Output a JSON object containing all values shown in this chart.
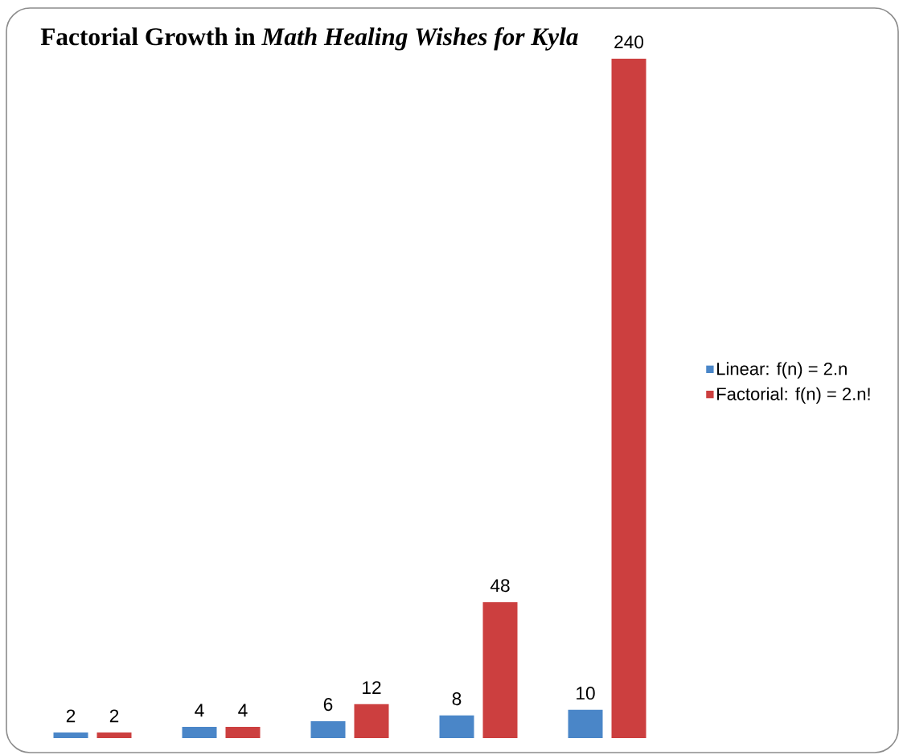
{
  "chart_data": {
    "type": "bar",
    "title": "Factorial Growth in *Math Healing Wishes for Kyla*",
    "categories": [
      null,
      null,
      null,
      null,
      null
    ],
    "series": [
      {
        "name": "Linear: f(n) = 2.n",
        "color": "#4a86c8",
        "values": [
          2,
          4,
          6,
          8,
          10
        ]
      },
      {
        "name": "Factorial: f(n) = 2.n!",
        "color": "#cc3f3f",
        "values": [
          2,
          4,
          12,
          48,
          240
        ]
      }
    ],
    "data_labels": true,
    "legend": "right"
  }
}
